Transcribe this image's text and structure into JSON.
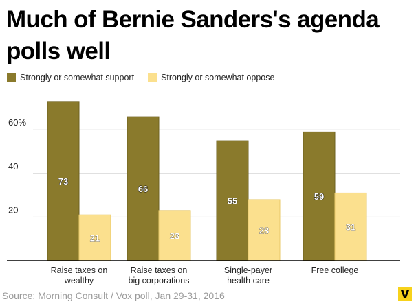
{
  "title": "Much of Bernie Sanders's agenda polls well",
  "legend": {
    "support_label": "Strongly or somewhat support",
    "oppose_label": "Strongly or somewhat oppose"
  },
  "source": "Source: Morning Consult / Vox poll, Jan 29-31, 2016",
  "logo_icon": "vox-v-icon",
  "colors": {
    "support": "#8a7a2c",
    "oppose": "#fbe08e",
    "logo": "#f7d21b"
  },
  "chart_data": {
    "type": "bar",
    "title": "Much of Bernie Sanders's agenda polls well",
    "categories": [
      [
        "Raise taxes on",
        "wealthy"
      ],
      [
        "Raise taxes on",
        "big corporations"
      ],
      [
        "Single-payer",
        "health care"
      ],
      [
        "Free college"
      ]
    ],
    "series": [
      {
        "name": "Strongly or somewhat support",
        "values": [
          73,
          66,
          55,
          59
        ]
      },
      {
        "name": "Strongly or somewhat oppose",
        "values": [
          21,
          23,
          28,
          31
        ]
      }
    ],
    "y_ticks": [
      {
        "value": 20,
        "label": "20"
      },
      {
        "value": 40,
        "label": "40"
      },
      {
        "value": 60,
        "label": "60%"
      }
    ],
    "ylim": [
      0,
      80
    ],
    "grid": true,
    "legend_position": "top-left",
    "data_labels": true
  }
}
